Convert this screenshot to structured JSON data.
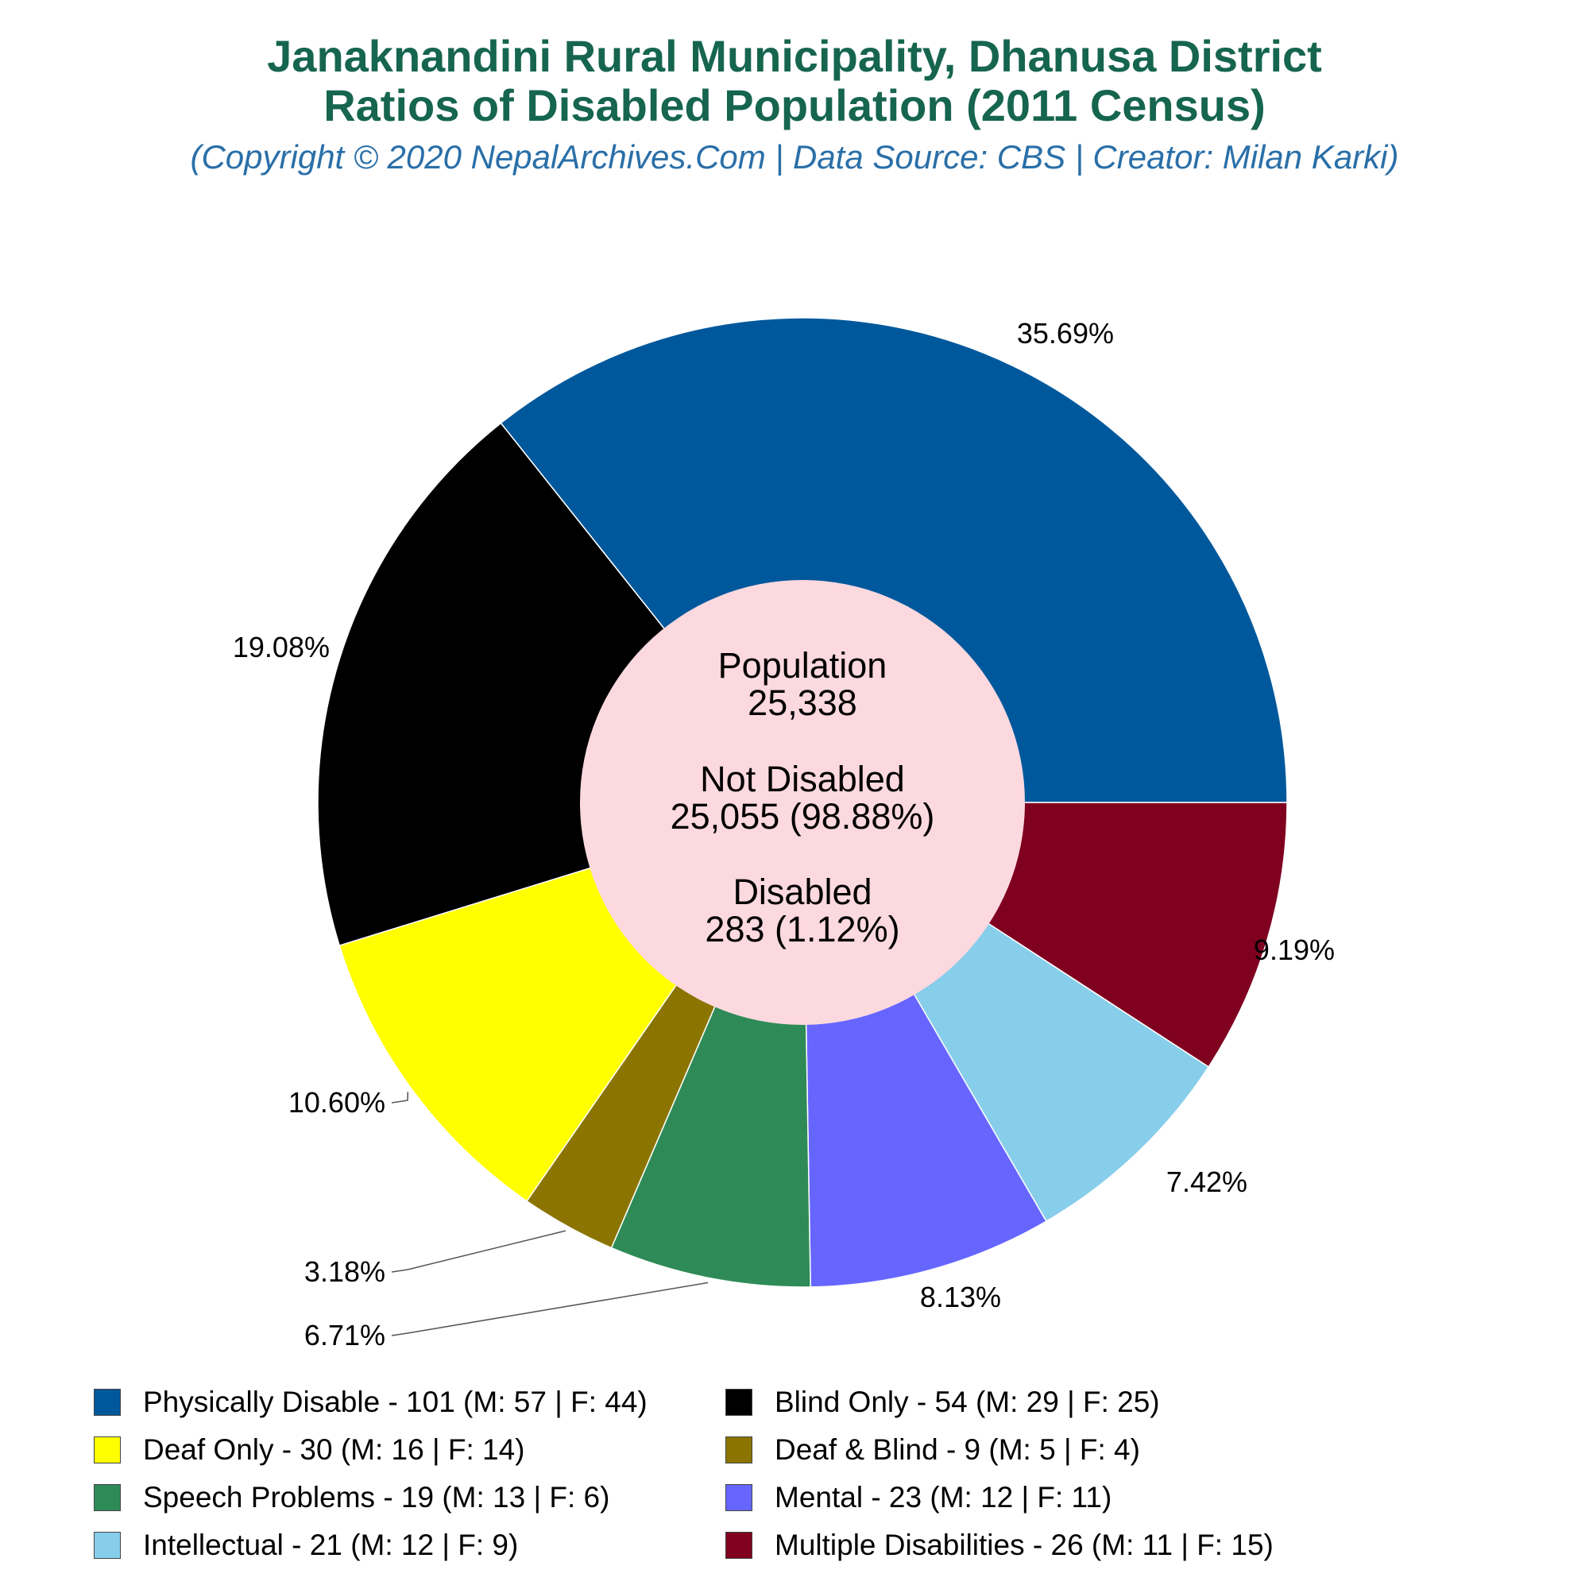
{
  "title": {
    "line1": "Janaknandini Rural Municipality, Dhanusa District",
    "line2": "Ratios of Disabled Population (2011 Census)",
    "subtitle": "(Copyright © 2020 NepalArchives.Com | Data Source: CBS | Creator: Milan Karki)"
  },
  "center": {
    "population_label": "Population",
    "population_value": "25,338",
    "not_disabled_label": "Not Disabled",
    "not_disabled_value": "25,055 (98.88%)",
    "disabled_label": "Disabled",
    "disabled_value": "283 (1.12%)"
  },
  "chart_data": {
    "type": "pie",
    "hole": true,
    "start": "3 o'clock, clockwise from Multiple Disabilities",
    "slices": [
      {
        "name": "Multiple Disabilities",
        "value": 26,
        "percent_label": "9.19%",
        "color": "#800020"
      },
      {
        "name": "Intellectual",
        "value": 21,
        "percent_label": "7.42%",
        "color": "#87ceeb"
      },
      {
        "name": "Mental",
        "value": 23,
        "percent_label": "8.13%",
        "color": "#6666ff"
      },
      {
        "name": "Speech Problems",
        "value": 19,
        "percent_label": "6.71%",
        "color": "#2e8b57"
      },
      {
        "name": "Deaf & Blind",
        "value": 9,
        "percent_label": "3.18%",
        "color": "#8b7500"
      },
      {
        "name": "Deaf Only",
        "value": 30,
        "percent_label": "10.60%",
        "color": "#ffff00"
      },
      {
        "name": "Blind Only",
        "value": 54,
        "percent_label": "19.08%",
        "color": "#000000"
      },
      {
        "name": "Physically Disable",
        "value": 101,
        "percent_label": "35.69%",
        "color": "#00589c"
      }
    ]
  },
  "legend": [
    {
      "label": "Physically Disable - 101 (M: 57 | F: 44)",
      "color": "#00589c"
    },
    {
      "label": "Blind Only - 54 (M: 29 | F: 25)",
      "color": "#000000"
    },
    {
      "label": "Deaf Only - 30 (M: 16 | F: 14)",
      "color": "#ffff00"
    },
    {
      "label": "Deaf & Blind - 9 (M: 5 | F: 4)",
      "color": "#8b7500"
    },
    {
      "label": "Speech Problems - 19 (M: 13 | F: 6)",
      "color": "#2e8b57"
    },
    {
      "label": "Mental - 23 (M: 12 | F: 11)",
      "color": "#6666ff"
    },
    {
      "label": "Intellectual - 21 (M: 12 | F: 9)",
      "color": "#87ceeb"
    },
    {
      "label": "Multiple Disabilities - 26 (M: 11 | F: 15)",
      "color": "#800020"
    }
  ],
  "colors": {
    "title": "#16654e",
    "subtitle": "#2a6fa8",
    "center_fill": "#fcd9df"
  }
}
